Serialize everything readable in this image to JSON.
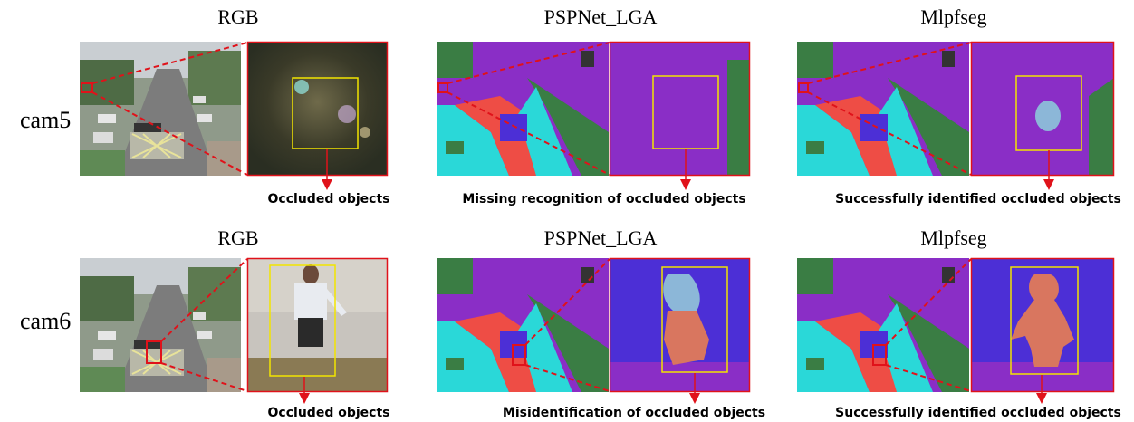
{
  "figure": {
    "column_titles": [
      "RGB",
      "PSPNet_LGA",
      "Mlpfseg",
      "RGB",
      "PSPNet_LGA",
      "Mlpfseg"
    ],
    "rows": [
      {
        "label": "cam5",
        "captions": {
          "rgb": "Occluded objects",
          "pspnet": "Missing recognition of occluded objects",
          "mlpfseg": "Successfully identified occluded objects"
        }
      },
      {
        "label": "cam6",
        "captions": {
          "rgb": "Occluded objects",
          "pspnet": "Misidentification of occluded objects",
          "mlpfseg": "Successfully identified occluded objects"
        }
      }
    ],
    "colors": {
      "highlight_box": "#f2e400",
      "zoom_border": "#e0121a",
      "arrow": "#e0121a",
      "seg_purple": "#8a2ec6",
      "seg_cyan": "#2ad8d8",
      "seg_red": "#ee4d45",
      "seg_green": "#3a7d44",
      "seg_blue": "#4c2fd6",
      "seg_salmon": "#d9765f",
      "seg_lightblue": "#8cb7d8"
    }
  }
}
